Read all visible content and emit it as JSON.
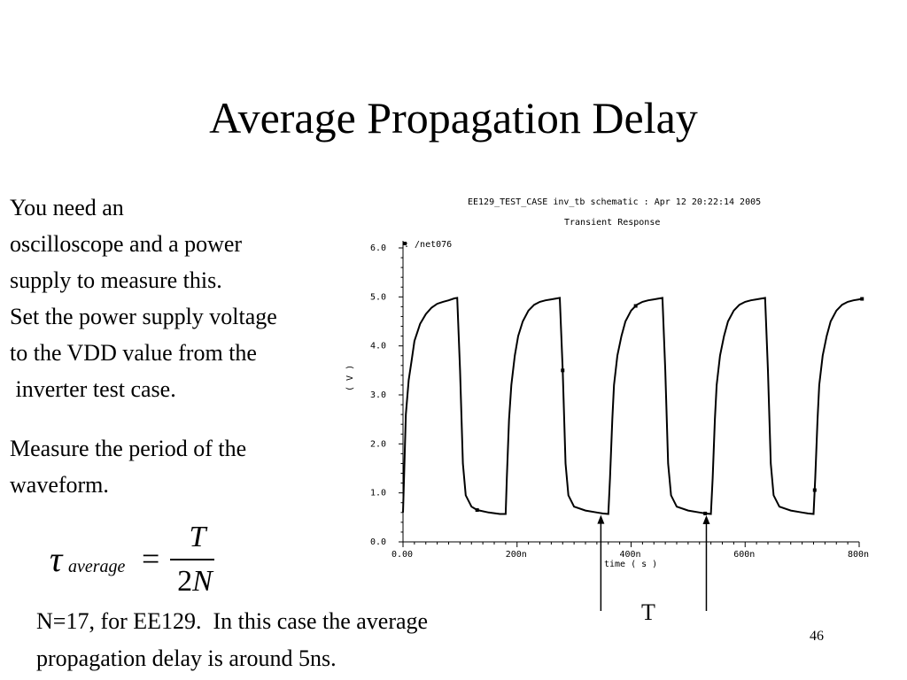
{
  "slide": {
    "title": "Average Propagation Delay",
    "para1": [
      "You need an",
      "oscilloscope and a power",
      "supply to measure this.",
      "Set the power supply voltage",
      "to the VDD value from the",
      " inverter test case."
    ],
    "para2": [
      "Measure the period of the",
      "waveform."
    ],
    "formula": {
      "symbol": "τ",
      "subscript": "average",
      "equals": "=",
      "numerator": "T",
      "denominator_coef": "2",
      "denominator_var": "N"
    },
    "bottom": [
      "N=17, for EE129.  In this case the average",
      "propagation delay is around 5ns."
    ],
    "page_number": "46",
    "period_marker_label": "T"
  },
  "chart_data": {
    "type": "line",
    "header": "EE129_TEST_CASE inv_tb schematic : Apr 12 20:22:14 2005",
    "title": "Transient Response",
    "xlabel": "time ( s )",
    "ylabel": "( V )",
    "legend": ": /net076",
    "x_ticks": [
      "0.00",
      "200n",
      "400n",
      "600n",
      "800n"
    ],
    "y_ticks": [
      "0.0",
      "1.0",
      "2.0",
      "3.0",
      "4.0",
      "5.0",
      "6.0"
    ],
    "xlim": [
      0,
      800
    ],
    "ylim": [
      0,
      6
    ],
    "x_unit": "ns",
    "series": [
      {
        "x": [
          0,
          2,
          5,
          10,
          15,
          20,
          30,
          40,
          50,
          60,
          70,
          80,
          90,
          95,
          100,
          105,
          110,
          120,
          130,
          150,
          170,
          180,
          182,
          186,
          190,
          196,
          202,
          210,
          220,
          230,
          240,
          250,
          260,
          270,
          275,
          280,
          285,
          290,
          300,
          320,
          340,
          350,
          360,
          363,
          367,
          370,
          376,
          383,
          390,
          400,
          410,
          420,
          430,
          440,
          450,
          455,
          460,
          465,
          470,
          480,
          500,
          520,
          530,
          540,
          543,
          547,
          550,
          556,
          563,
          570,
          580,
          590,
          600,
          610,
          620,
          630,
          635,
          640,
          645,
          650,
          660,
          680,
          700,
          710,
          720,
          723,
          727,
          730,
          736,
          743,
          750,
          760,
          770,
          780,
          790,
          800,
          805
        ],
        "y": [
          0.6,
          1.4,
          2.6,
          3.3,
          3.7,
          4.1,
          4.45,
          4.65,
          4.78,
          4.86,
          4.9,
          4.93,
          4.97,
          4.98,
          3.5,
          1.6,
          0.95,
          0.72,
          0.65,
          0.6,
          0.57,
          0.57,
          1.3,
          2.5,
          3.2,
          3.8,
          4.2,
          4.5,
          4.72,
          4.84,
          4.9,
          4.93,
          4.95,
          4.97,
          4.98,
          3.5,
          1.6,
          0.95,
          0.72,
          0.64,
          0.6,
          0.58,
          0.57,
          1.3,
          2.5,
          3.2,
          3.8,
          4.2,
          4.5,
          4.72,
          4.84,
          4.9,
          4.93,
          4.95,
          4.97,
          4.98,
          3.5,
          1.6,
          0.95,
          0.72,
          0.64,
          0.6,
          0.58,
          0.57,
          1.3,
          2.5,
          3.2,
          3.8,
          4.2,
          4.5,
          4.72,
          4.84,
          4.9,
          4.93,
          4.95,
          4.97,
          4.98,
          3.5,
          1.6,
          0.95,
          0.72,
          0.64,
          0.6,
          0.58,
          0.57,
          1.3,
          2.5,
          3.2,
          3.8,
          4.2,
          4.5,
          4.72,
          4.84,
          4.9,
          4.93,
          4.95,
          4.96
        ]
      }
    ],
    "marker_x": [
      130,
      280,
      408,
      530,
      722,
      805
    ],
    "period_marker_x": [
      347,
      532
    ]
  }
}
